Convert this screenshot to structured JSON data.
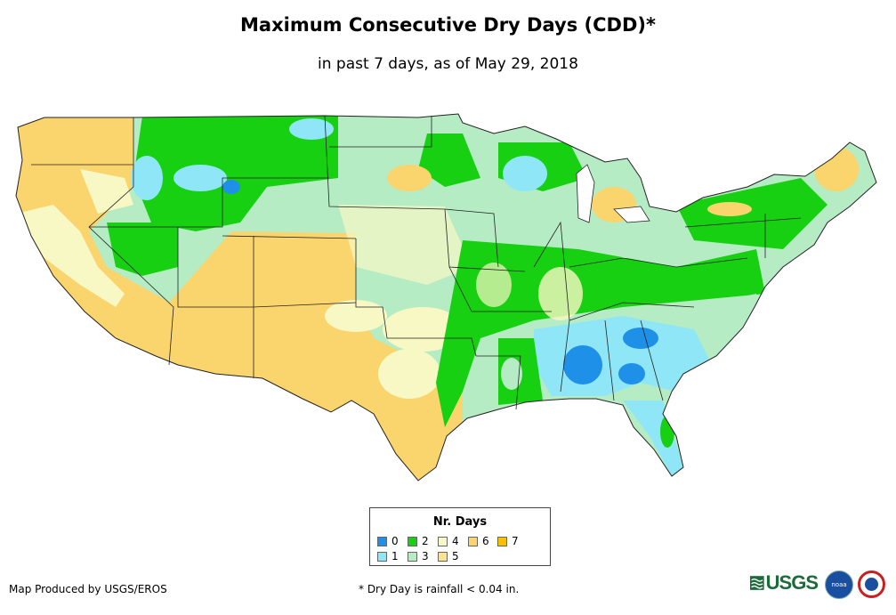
{
  "header": {
    "title": "Maximum Consecutive Dry Days (CDD)*",
    "subtitle": "in past 7 days, as of May 29, 2018"
  },
  "legend": {
    "title": "Nr. Days",
    "items": [
      {
        "label": "0",
        "color": "#1e90e8"
      },
      {
        "label": "1",
        "color": "#8fe6f7"
      },
      {
        "label": "2",
        "color": "#18d012"
      },
      {
        "label": "3",
        "color": "#b5ecc4"
      },
      {
        "label": "4",
        "color": "#f8f8c4"
      },
      {
        "label": "5",
        "color": "#fbe48a"
      },
      {
        "label": "6",
        "color": "#fad46c"
      },
      {
        "label": "7",
        "color": "#f8c000"
      }
    ]
  },
  "footer": {
    "credit": "Map Produced by USGS/EROS",
    "footnote": "* Dry Day is rainfall < 0.04 in.",
    "usgs_logo": "USGS",
    "noaa_logo": "noaa"
  }
}
